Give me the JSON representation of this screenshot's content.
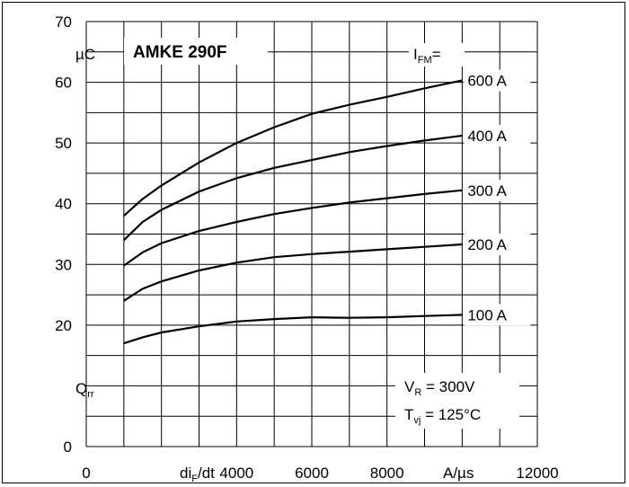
{
  "chart_data": {
    "type": "line",
    "title": "AMKE 290F",
    "xlabel_parts": {
      "main": "di",
      "sub": "F",
      "rest": "/dt"
    },
    "xunit": "A/µs",
    "yunit": "µC",
    "ylabel_parts": {
      "main": "Q",
      "sub": "rr"
    },
    "xlim": [
      0,
      12000
    ],
    "ylim": [
      0,
      70
    ],
    "x_ticks": [
      "0",
      "4000",
      "6000",
      "8000",
      "12000"
    ],
    "y_ticks": [
      "0",
      "20",
      "30",
      "40",
      "50",
      "60",
      "70"
    ],
    "legend_header": {
      "main": "I",
      "sub": "FM",
      "rest": "="
    },
    "conditions": [
      {
        "main": "V",
        "sub": "R",
        "rest": " = 300V"
      },
      {
        "main": "T",
        "sub": "vj",
        "rest": " = 125°C"
      }
    ],
    "grid": true,
    "series": [
      {
        "name": "600 A",
        "x": [
          1000,
          1500,
          2000,
          3000,
          4000,
          5000,
          6000,
          7000,
          8000,
          9000,
          10000
        ],
        "values": [
          38,
          40.8,
          43,
          46.8,
          50,
          52.6,
          54.8,
          56.3,
          57.6,
          59,
          60.3
        ]
      },
      {
        "name": "400 A",
        "x": [
          1000,
          1500,
          2000,
          3000,
          4000,
          5000,
          6000,
          7000,
          8000,
          9000,
          10000
        ],
        "values": [
          34,
          37,
          39,
          42,
          44.2,
          45.9,
          47.2,
          48.5,
          49.5,
          50.4,
          51.2
        ]
      },
      {
        "name": "300 A",
        "x": [
          1000,
          1500,
          2000,
          3000,
          4000,
          5000,
          6000,
          7000,
          8000,
          9000,
          10000
        ],
        "values": [
          29.8,
          32,
          33.5,
          35.5,
          37,
          38.3,
          39.3,
          40.2,
          40.9,
          41.6,
          42.2
        ]
      },
      {
        "name": "200 A",
        "x": [
          1000,
          1500,
          2000,
          3000,
          4000,
          5000,
          6000,
          7000,
          8000,
          9000,
          10000
        ],
        "values": [
          24,
          26,
          27.2,
          29,
          30.3,
          31.2,
          31.7,
          32.1,
          32.5,
          32.9,
          33.3
        ]
      },
      {
        "name": "100 A",
        "x": [
          1000,
          1500,
          2000,
          3000,
          4000,
          5000,
          6000,
          7000,
          8000,
          9000,
          10000
        ],
        "values": [
          17,
          18,
          18.8,
          19.8,
          20.6,
          21,
          21.3,
          21.2,
          21.3,
          21.5,
          21.7
        ]
      }
    ]
  }
}
